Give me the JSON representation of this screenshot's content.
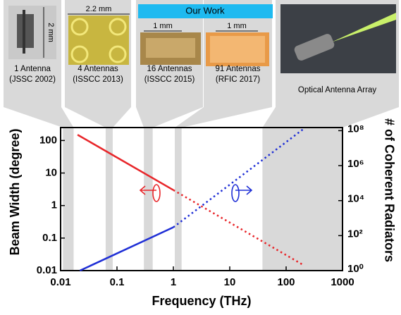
{
  "chart_data": {
    "type": "line",
    "xlabel": "Frequency (THz)",
    "ylabel": "Beam Width (degree)",
    "y2label": "# of Coherent Radiators",
    "xscale": "log",
    "yscale": "log",
    "y2scale": "log",
    "xlim": [
      0.01,
      1000
    ],
    "ylim": [
      0.01,
      250
    ],
    "y2lim": [
      1,
      150000000
    ],
    "xticks": [
      0.01,
      0.1,
      1,
      10,
      100,
      1000
    ],
    "yticks": [
      0.01,
      0.1,
      1,
      10,
      100
    ],
    "y2ticks": [
      {
        "value": 1,
        "label": "10⁰"
      },
      {
        "value": 100,
        "label": "10²"
      },
      {
        "value": 10000,
        "label": "10⁴"
      },
      {
        "value": 1000000,
        "label": "10⁶"
      },
      {
        "value": 100000000,
        "label": "10⁸"
      }
    ],
    "series": [
      {
        "color": "#e8262a",
        "style": "solid",
        "x": [
          0.02,
          1
        ],
        "values": [
          150,
          3
        ]
      },
      {
        "color": "#e8262a",
        "style": "dotted",
        "x": [
          1,
          200
        ],
        "values": [
          3,
          0.015
        ]
      },
      {
        "color": "#1f2fd6",
        "style": "solid",
        "axis": "y2",
        "x": [
          0.022,
          1
        ],
        "values": [
          1,
          300
        ]
      },
      {
        "color": "#1f2fd6",
        "style": "dotted",
        "axis": "y2",
        "x": [
          1,
          200
        ],
        "values": [
          300,
          120000000
        ]
      }
    ],
    "bands": [
      [
        0.011,
        0.017
      ],
      [
        0.063,
        0.084
      ],
      [
        0.3,
        0.43
      ],
      [
        1.06,
        1.4
      ],
      [
        38,
        1000
      ]
    ],
    "band_color": "#d9d9d9"
  },
  "panels": [
    {
      "scale": "2 mm",
      "lines": [
        "1 Antenna",
        "(JSSC 2002)"
      ]
    },
    {
      "scale": "2.2 mm",
      "lines": [
        "4 Antennas",
        "(ISSCC 2013)"
      ]
    },
    {
      "scale": "1 mm",
      "lines": [
        "16 Antennas",
        "(ISSCC 2015)"
      ]
    },
    {
      "scale": "1 mm",
      "lines": [
        "91 Antennas",
        "(RFIC 2017)"
      ]
    },
    {
      "lines": [
        "Optical Antenna Array"
      ]
    }
  ],
  "our_work": "Our Work"
}
